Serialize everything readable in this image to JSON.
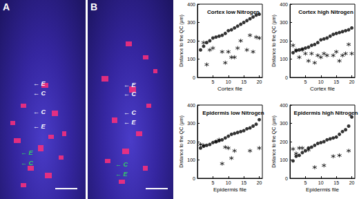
{
  "micrographs": [
    {
      "label": "A",
      "annotations": [
        {
          "text": "E",
          "color": "white"
        },
        {
          "text": "C",
          "color": "white"
        },
        {
          "text": "C",
          "color": "white"
        },
        {
          "text": "E",
          "color": "white"
        },
        {
          "text": "E",
          "color": "green"
        },
        {
          "text": "C",
          "color": "green"
        }
      ]
    },
    {
      "label": "B",
      "annotations": [
        {
          "text": "E",
          "color": "white"
        },
        {
          "text": "C",
          "color": "white"
        },
        {
          "text": "C",
          "color": "white"
        },
        {
          "text": "E",
          "color": "white"
        },
        {
          "text": "C",
          "color": "green"
        },
        {
          "text": "E",
          "color": "green"
        }
      ]
    }
  ],
  "chart_data": [
    {
      "type": "scatter",
      "title": "Cortex low Nitrogen",
      "x_label": "Cortex file",
      "y_label": "Distance to the QC (µm)",
      "x": [
        1,
        2,
        3,
        4,
        5,
        6,
        7,
        8,
        9,
        10,
        11,
        12,
        13,
        14,
        15,
        16,
        17,
        18,
        19,
        20
      ],
      "xlim": [
        0,
        21
      ],
      "xticks": [
        5,
        10,
        15,
        20
      ],
      "ylim": [
        0,
        400
      ],
      "yticks": [
        0,
        100,
        200,
        300,
        400
      ],
      "grid": false,
      "series": [
        {
          "marker": "circle",
          "color": "#000000",
          "values": [
            150,
            170,
            190,
            200,
            215,
            220,
            225,
            230,
            240,
            255,
            260,
            270,
            280,
            290,
            300,
            310,
            320,
            330,
            340,
            345
          ]
        },
        {
          "marker": "asterisk",
          "color": "#000000",
          "values": [
            null,
            190,
            70,
            150,
            160,
            null,
            null,
            140,
            80,
            140,
            110,
            110,
            160,
            200,
            null,
            150,
            230,
            140,
            220,
            215
          ]
        }
      ]
    },
    {
      "type": "scatter",
      "title": "Cortex high Nitrogen",
      "x_label": "Cortex file",
      "y_label": "Distance to the QC (µm)",
      "x": [
        1,
        2,
        3,
        4,
        5,
        6,
        7,
        8,
        9,
        10,
        11,
        12,
        13,
        14,
        15,
        16,
        17,
        18,
        19,
        20
      ],
      "xlim": [
        0,
        21
      ],
      "xticks": [
        5,
        10,
        15,
        20
      ],
      "ylim": [
        0,
        400
      ],
      "yticks": [
        0,
        100,
        200,
        300,
        400
      ],
      "grid": false,
      "series": [
        {
          "marker": "circle",
          "color": "#000000",
          "values": [
            135,
            145,
            150,
            155,
            160,
            165,
            175,
            180,
            190,
            205,
            210,
            215,
            225,
            235,
            240,
            245,
            250,
            255,
            260,
            270
          ]
        },
        {
          "marker": "asterisk",
          "color": "#000000",
          "values": [
            175,
            150,
            110,
            150,
            130,
            90,
            130,
            80,
            120,
            110,
            130,
            120,
            null,
            120,
            140,
            90,
            120,
            130,
            180,
            130
          ]
        }
      ]
    },
    {
      "type": "scatter",
      "title": "Epidermis low Nitrogen",
      "x_label": "Epidermis file",
      "y_label": "Distance to the QC (µm)",
      "x": [
        1,
        2,
        3,
        4,
        5,
        6,
        7,
        8,
        9,
        10,
        11,
        12,
        13,
        14,
        15,
        16,
        17,
        18,
        19,
        20
      ],
      "xlim": [
        0,
        21
      ],
      "xticks": [
        5,
        10,
        15,
        20
      ],
      "ylim": [
        0,
        400
      ],
      "yticks": [
        0,
        100,
        200,
        300,
        400
      ],
      "grid": false,
      "series": [
        {
          "marker": "circle",
          "color": "#000000",
          "values": [
            165,
            175,
            180,
            185,
            195,
            200,
            205,
            210,
            220,
            230,
            240,
            245,
            250,
            255,
            260,
            270,
            275,
            285,
            295,
            320
          ]
        },
        {
          "marker": "asterisk",
          "color": "#000000",
          "values": [
            185,
            180,
            null,
            null,
            null,
            200,
            210,
            80,
            170,
            165,
            110,
            150,
            null,
            null,
            null,
            null,
            150,
            null,
            null,
            165
          ]
        }
      ]
    },
    {
      "type": "scatter",
      "title": "Epidermis high Nitrogen",
      "x_label": "Epidermis file",
      "y_label": "Distance to the QC (µm)",
      "x": [
        1,
        2,
        3,
        4,
        5,
        6,
        7,
        8,
        9,
        10,
        11,
        12,
        13,
        14,
        15,
        16,
        17,
        18,
        19,
        20
      ],
      "xlim": [
        0,
        21
      ],
      "xticks": [
        5,
        10,
        15,
        20
      ],
      "ylim": [
        0,
        400
      ],
      "yticks": [
        0,
        100,
        200,
        300,
        400
      ],
      "grid": false,
      "series": [
        {
          "marker": "circle",
          "color": "#000000",
          "values": [
            95,
            120,
            125,
            140,
            150,
            165,
            170,
            180,
            190,
            195,
            200,
            210,
            215,
            220,
            225,
            240,
            255,
            265,
            285,
            335
          ]
        },
        {
          "marker": "asterisk",
          "color": "#000000",
          "values": [
            160,
            135,
            165,
            165,
            null,
            155,
            null,
            60,
            null,
            null,
            70,
            null,
            null,
            120,
            null,
            125,
            null,
            null,
            150,
            null
          ]
        }
      ]
    }
  ]
}
